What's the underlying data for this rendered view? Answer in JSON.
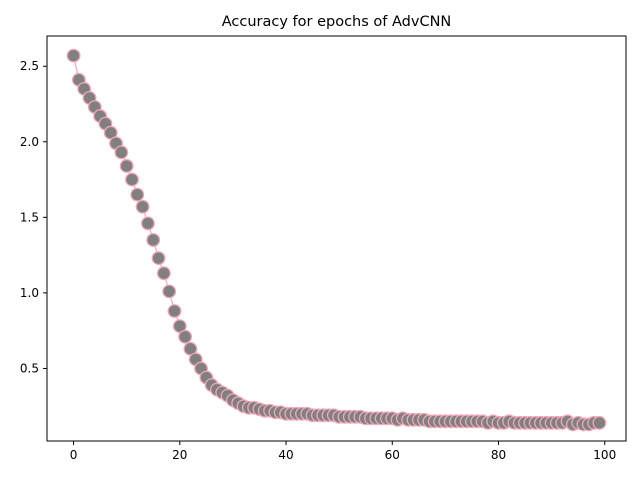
{
  "chart_data": {
    "type": "line",
    "title": "Accuracy for epochs of AdvCNN",
    "xlabel": "",
    "ylabel": "",
    "xlim": [
      -5,
      104
    ],
    "ylim": [
      0.02,
      2.7
    ],
    "x_ticks": [
      0,
      20,
      40,
      60,
      80,
      100
    ],
    "y_ticks": [
      0.5,
      1.0,
      1.5,
      2.0,
      2.5
    ],
    "x_tick_labels": [
      "0",
      "20",
      "40",
      "60",
      "80",
      "100"
    ],
    "y_tick_labels": [
      "0.5",
      "1.0",
      "1.5",
      "2.0",
      "2.5"
    ],
    "grid": false,
    "legend": "none",
    "series": [
      {
        "line_color": "#f4a7b9",
        "marker_face": "#808080",
        "marker_edge": "#f4a7b9",
        "x": [
          0,
          1,
          2,
          3,
          4,
          5,
          6,
          7,
          8,
          9,
          10,
          11,
          12,
          13,
          14,
          15,
          16,
          17,
          18,
          19,
          20,
          21,
          22,
          23,
          24,
          25,
          26,
          27,
          28,
          29,
          30,
          31,
          32,
          33,
          34,
          35,
          36,
          37,
          38,
          39,
          40,
          41,
          42,
          43,
          44,
          45,
          46,
          47,
          48,
          49,
          50,
          51,
          52,
          53,
          54,
          55,
          56,
          57,
          58,
          59,
          60,
          61,
          62,
          63,
          64,
          65,
          66,
          67,
          68,
          69,
          70,
          71,
          72,
          73,
          74,
          75,
          76,
          77,
          78,
          79,
          80,
          81,
          82,
          83,
          84,
          85,
          86,
          87,
          88,
          89,
          90,
          91,
          92,
          93,
          94,
          95,
          96,
          97,
          98,
          99
        ],
        "values": [
          2.57,
          2.41,
          2.35,
          2.29,
          2.23,
          2.17,
          2.12,
          2.06,
          1.99,
          1.93,
          1.84,
          1.75,
          1.65,
          1.57,
          1.46,
          1.35,
          1.23,
          1.13,
          1.01,
          0.88,
          0.78,
          0.71,
          0.63,
          0.56,
          0.5,
          0.44,
          0.39,
          0.36,
          0.34,
          0.32,
          0.29,
          0.27,
          0.25,
          0.24,
          0.24,
          0.23,
          0.22,
          0.22,
          0.21,
          0.21,
          0.2,
          0.2,
          0.2,
          0.2,
          0.2,
          0.19,
          0.19,
          0.19,
          0.19,
          0.19,
          0.18,
          0.18,
          0.18,
          0.18,
          0.18,
          0.17,
          0.17,
          0.17,
          0.17,
          0.17,
          0.17,
          0.16,
          0.17,
          0.16,
          0.16,
          0.16,
          0.16,
          0.15,
          0.15,
          0.15,
          0.15,
          0.15,
          0.15,
          0.15,
          0.15,
          0.15,
          0.15,
          0.15,
          0.14,
          0.15,
          0.14,
          0.14,
          0.15,
          0.14,
          0.14,
          0.14,
          0.14,
          0.14,
          0.14,
          0.14,
          0.14,
          0.14,
          0.14,
          0.15,
          0.13,
          0.14,
          0.13,
          0.13,
          0.14,
          0.14
        ]
      }
    ]
  }
}
